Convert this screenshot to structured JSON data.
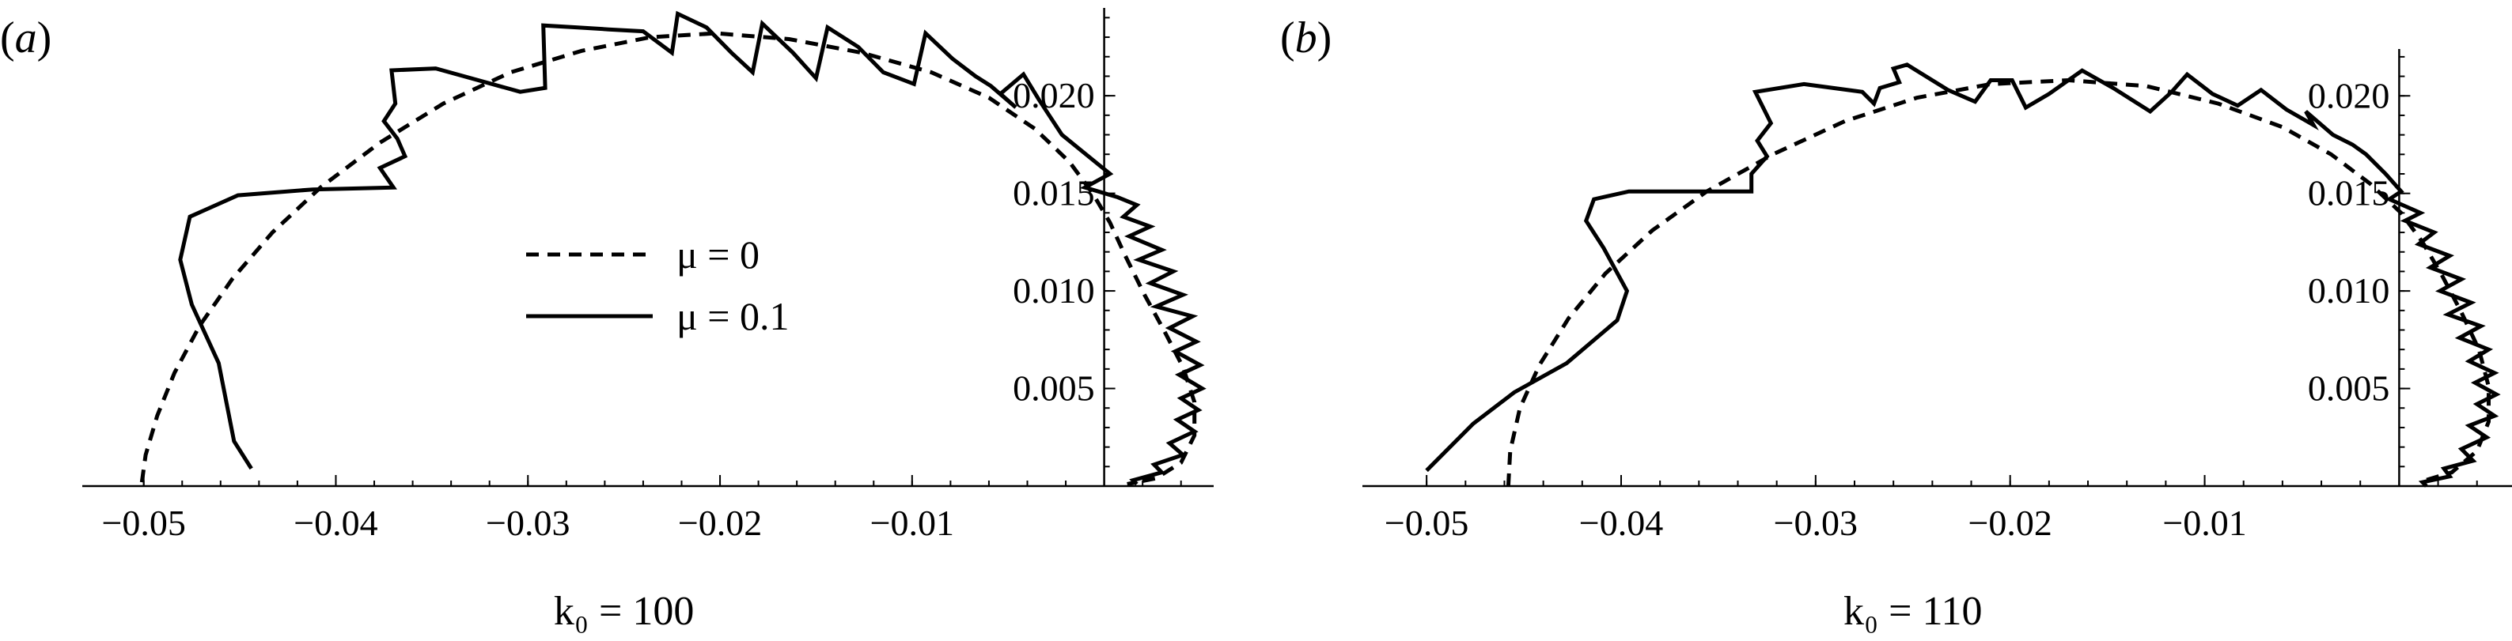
{
  "chart_data": [
    {
      "type": "line",
      "panel_label": "(a)",
      "xlabel": "k₀ = 100",
      "xticks": [
        "−0.05",
        "−0.04",
        "−0.03",
        "−0.02",
        "−0.01"
      ],
      "xtick_values": [
        -0.05,
        -0.04,
        -0.03,
        -0.02,
        -0.01
      ],
      "yticks": [
        "0.005",
        "0.010",
        "0.015",
        "0.020"
      ],
      "ytick_values": [
        0.005,
        0.01,
        0.015,
        0.02
      ],
      "xlim": [
        -0.0532,
        0.0057
      ],
      "ylim": [
        0,
        0.0245
      ],
      "legend": {
        "placement": "center",
        "entries": [
          {
            "label": "μ = 0",
            "style": "dashed"
          },
          {
            "label": "μ = 0.1",
            "style": "solid"
          }
        ]
      },
      "series": [
        {
          "name": "μ = 0",
          "style": "dashed",
          "points": [
            [
              -0.0501,
              0.0002
            ],
            [
              -0.0499,
              0.0016
            ],
            [
              -0.0493,
              0.0036
            ],
            [
              -0.0484,
              0.0058
            ],
            [
              -0.0471,
              0.0082
            ],
            [
              -0.0454,
              0.0106
            ],
            [
              -0.0433,
              0.013
            ],
            [
              -0.0408,
              0.0153
            ],
            [
              -0.0377,
              0.0176
            ],
            [
              -0.0344,
              0.0196
            ],
            [
              -0.0309,
              0.0212
            ],
            [
              -0.0272,
              0.0223
            ],
            [
              -0.0236,
              0.023
            ],
            [
              -0.0202,
              0.0232
            ],
            [
              -0.0164,
              0.0229
            ],
            [
              -0.0126,
              0.0222
            ],
            [
              -0.009,
              0.0212
            ],
            [
              -0.006,
              0.0199
            ],
            [
              -0.0036,
              0.0183
            ],
            [
              -0.0018,
              0.0166
            ],
            [
              -0.0006,
              0.015
            ],
            [
              0.0003,
              0.0135
            ],
            [
              0.0011,
              0.0118
            ],
            [
              0.0021,
              0.0098
            ],
            [
              0.0031,
              0.008
            ],
            [
              0.0041,
              0.0061
            ],
            [
              0.0047,
              0.0043
            ],
            [
              0.0047,
              0.0026
            ],
            [
              0.004,
              0.0012
            ],
            [
              0.0027,
              0.0004
            ],
            [
              0.0012,
              0.0001
            ]
          ]
        },
        {
          "name": "μ = 0.1",
          "style": "solid",
          "points": [
            [
              -0.0444,
              0.0009
            ],
            [
              -0.0453,
              0.0023
            ],
            [
              -0.0461,
              0.0063
            ],
            [
              -0.0475,
              0.0093
            ],
            [
              -0.0481,
              0.0116
            ],
            [
              -0.0476,
              0.0138
            ],
            [
              -0.0451,
              0.0149
            ],
            [
              -0.0412,
              0.0152
            ],
            [
              -0.037,
              0.0153
            ],
            [
              -0.0377,
              0.0163
            ],
            [
              -0.0364,
              0.0169
            ],
            [
              -0.0368,
              0.0178
            ],
            [
              -0.0375,
              0.0187
            ],
            [
              -0.0369,
              0.0196
            ],
            [
              -0.0371,
              0.0213
            ],
            [
              -0.0348,
              0.0214
            ],
            [
              -0.0304,
              0.0202
            ],
            [
              -0.0291,
              0.0204
            ],
            [
              -0.0292,
              0.0236
            ],
            [
              -0.0274,
              0.0235
            ],
            [
              -0.0258,
              0.0234
            ],
            [
              -0.024,
              0.0233
            ],
            [
              -0.0225,
              0.0222
            ],
            [
              -0.0222,
              0.0242
            ],
            [
              -0.0207,
              0.0235
            ],
            [
              -0.0194,
              0.0222
            ],
            [
              -0.0183,
              0.0212
            ],
            [
              -0.0178,
              0.0237
            ],
            [
              -0.0162,
              0.0222
            ],
            [
              -0.015,
              0.0209
            ],
            [
              -0.0144,
              0.0235
            ],
            [
              -0.0128,
              0.0225
            ],
            [
              -0.0115,
              0.0212
            ],
            [
              -0.0099,
              0.0206
            ],
            [
              -0.0093,
              0.0232
            ],
            [
              -0.0079,
              0.0219
            ],
            [
              -0.0067,
              0.021
            ],
            [
              -0.0059,
              0.0205
            ],
            [
              -0.0046,
              0.0194
            ],
            [
              -0.0054,
              0.0201
            ],
            [
              -0.0042,
              0.0211
            ],
            [
              -0.0034,
              0.0198
            ],
            [
              -0.0022,
              0.018
            ],
            [
              -0.0012,
              0.0172
            ],
            [
              0.0003,
              0.016
            ],
            [
              -0.001,
              0.0153
            ],
            [
              0.0007,
              0.0148
            ],
            [
              0.0017,
              0.0144
            ],
            [
              0.001,
              0.0138
            ],
            [
              0.0024,
              0.0133
            ],
            [
              0.0013,
              0.0128
            ],
            [
              0.003,
              0.0121
            ],
            [
              0.0018,
              0.0116
            ],
            [
              0.0036,
              0.011
            ],
            [
              0.0024,
              0.0104
            ],
            [
              0.0041,
              0.0098
            ],
            [
              0.0027,
              0.0092
            ],
            [
              0.0046,
              0.0087
            ],
            [
              0.0034,
              0.0081
            ],
            [
              0.0048,
              0.0074
            ],
            [
              0.0037,
              0.0069
            ],
            [
              0.005,
              0.0062
            ],
            [
              0.0039,
              0.0057
            ],
            [
              0.0051,
              0.005
            ],
            [
              0.004,
              0.0045
            ],
            [
              0.0049,
              0.0039
            ],
            [
              0.0038,
              0.0034
            ],
            [
              0.0047,
              0.0028
            ],
            [
              0.0034,
              0.0022
            ],
            [
              0.0041,
              0.0016
            ],
            [
              0.0026,
              0.0011
            ],
            [
              0.003,
              0.0007
            ],
            [
              0.0015,
              0.0003
            ],
            [
              0.0017,
              0.0001
            ]
          ]
        }
      ]
    },
    {
      "type": "line",
      "panel_label": "(b)",
      "xlabel": "k₀ = 110",
      "xticks": [
        "−0.05",
        "−0.04",
        "−0.03",
        "−0.02",
        "−0.01"
      ],
      "xtick_values": [
        -0.05,
        -0.04,
        -0.03,
        -0.02,
        -0.01
      ],
      "yticks": [
        "0.005",
        "0.010",
        "0.015",
        "0.020"
      ],
      "ytick_values": [
        0.005,
        0.01,
        0.015,
        0.02
      ],
      "xlim": [
        -0.0533,
        0.0058
      ],
      "ylim": [
        0,
        0.0224
      ],
      "series": [
        {
          "name": "μ = 0",
          "style": "dashed",
          "points": [
            [
              -0.0458,
              0.0
            ],
            [
              -0.0457,
              0.0018
            ],
            [
              -0.0452,
              0.004
            ],
            [
              -0.0442,
              0.0062
            ],
            [
              -0.0427,
              0.0086
            ],
            [
              -0.0408,
              0.0109
            ],
            [
              -0.0384,
              0.0131
            ],
            [
              -0.0356,
              0.0151
            ],
            [
              -0.0322,
              0.017
            ],
            [
              -0.0285,
              0.0187
            ],
            [
              -0.0248,
              0.0199
            ],
            [
              -0.021,
              0.0206
            ],
            [
              -0.017,
              0.0208
            ],
            [
              -0.013,
              0.0205
            ],
            [
              -0.0093,
              0.0196
            ],
            [
              -0.006,
              0.0184
            ],
            [
              -0.0035,
              0.017
            ],
            [
              -0.0015,
              0.0155
            ],
            [
              0.0001,
              0.014
            ],
            [
              0.0012,
              0.0125
            ],
            [
              0.0022,
              0.0108
            ],
            [
              0.0032,
              0.0089
            ],
            [
              0.0041,
              0.007
            ],
            [
              0.0046,
              0.0051
            ],
            [
              0.0046,
              0.0033
            ],
            [
              0.004,
              0.0018
            ],
            [
              0.0027,
              0.0007
            ],
            [
              0.001,
              0.0002
            ]
          ]
        },
        {
          "name": "μ = 0.1",
          "style": "solid",
          "points": [
            [
              -0.05,
              0.0008
            ],
            [
              -0.0476,
              0.0032
            ],
            [
              -0.0455,
              0.0048
            ],
            [
              -0.0428,
              0.0063
            ],
            [
              -0.0402,
              0.0085
            ],
            [
              -0.0397,
              0.01
            ],
            [
              -0.0409,
              0.0122
            ],
            [
              -0.0418,
              0.0136
            ],
            [
              -0.0414,
              0.0147
            ],
            [
              -0.0396,
              0.0151
            ],
            [
              -0.0364,
              0.0151
            ],
            [
              -0.0333,
              0.0151
            ],
            [
              -0.0333,
              0.016
            ],
            [
              -0.0325,
              0.0169
            ],
            [
              -0.033,
              0.0177
            ],
            [
              -0.0323,
              0.0186
            ],
            [
              -0.0331,
              0.0202
            ],
            [
              -0.0306,
              0.0206
            ],
            [
              -0.0276,
              0.0202
            ],
            [
              -0.027,
              0.0196
            ],
            [
              -0.0267,
              0.0204
            ],
            [
              -0.0257,
              0.0207
            ],
            [
              -0.026,
              0.0214
            ],
            [
              -0.0253,
              0.0216
            ],
            [
              -0.0232,
              0.0203
            ],
            [
              -0.0218,
              0.0197
            ],
            [
              -0.021,
              0.0208
            ],
            [
              -0.0199,
              0.0208
            ],
            [
              -0.0192,
              0.0194
            ],
            [
              -0.018,
              0.0201
            ],
            [
              -0.0163,
              0.0213
            ],
            [
              -0.0147,
              0.0204
            ],
            [
              -0.0128,
              0.0192
            ],
            [
              -0.0117,
              0.0202
            ],
            [
              -0.0109,
              0.0211
            ],
            [
              -0.0096,
              0.0201
            ],
            [
              -0.0083,
              0.0195
            ],
            [
              -0.0071,
              0.0203
            ],
            [
              -0.0058,
              0.0193
            ],
            [
              -0.0044,
              0.0185
            ],
            [
              -0.0048,
              0.0192
            ],
            [
              -0.0034,
              0.018
            ],
            [
              -0.0024,
              0.0175
            ],
            [
              -0.0017,
              0.017
            ],
            [
              -0.0007,
              0.016
            ],
            [
              0.0001,
              0.0151
            ],
            [
              -0.0005,
              0.0147
            ],
            [
              0.0011,
              0.014
            ],
            [
              0.0003,
              0.0136
            ],
            [
              0.0018,
              0.013
            ],
            [
              0.001,
              0.0124
            ],
            [
              0.0026,
              0.0118
            ],
            [
              0.0016,
              0.0112
            ],
            [
              0.0032,
              0.0106
            ],
            [
              0.0021,
              0.01
            ],
            [
              0.0037,
              0.0094
            ],
            [
              0.0025,
              0.0088
            ],
            [
              0.0042,
              0.0082
            ],
            [
              0.0031,
              0.0076
            ],
            [
              0.0046,
              0.007
            ],
            [
              0.0036,
              0.0064
            ],
            [
              0.0049,
              0.0058
            ],
            [
              0.0039,
              0.0053
            ],
            [
              0.005,
              0.0047
            ],
            [
              0.004,
              0.0042
            ],
            [
              0.0049,
              0.0036
            ],
            [
              0.0036,
              0.0031
            ],
            [
              0.0045,
              0.0025
            ],
            [
              0.0032,
              0.0019
            ],
            [
              0.0038,
              0.0013
            ],
            [
              0.0023,
              0.0009
            ],
            [
              0.0026,
              0.0005
            ],
            [
              0.0012,
              0.0002
            ],
            [
              0.0014,
              0.0
            ]
          ]
        }
      ]
    }
  ]
}
